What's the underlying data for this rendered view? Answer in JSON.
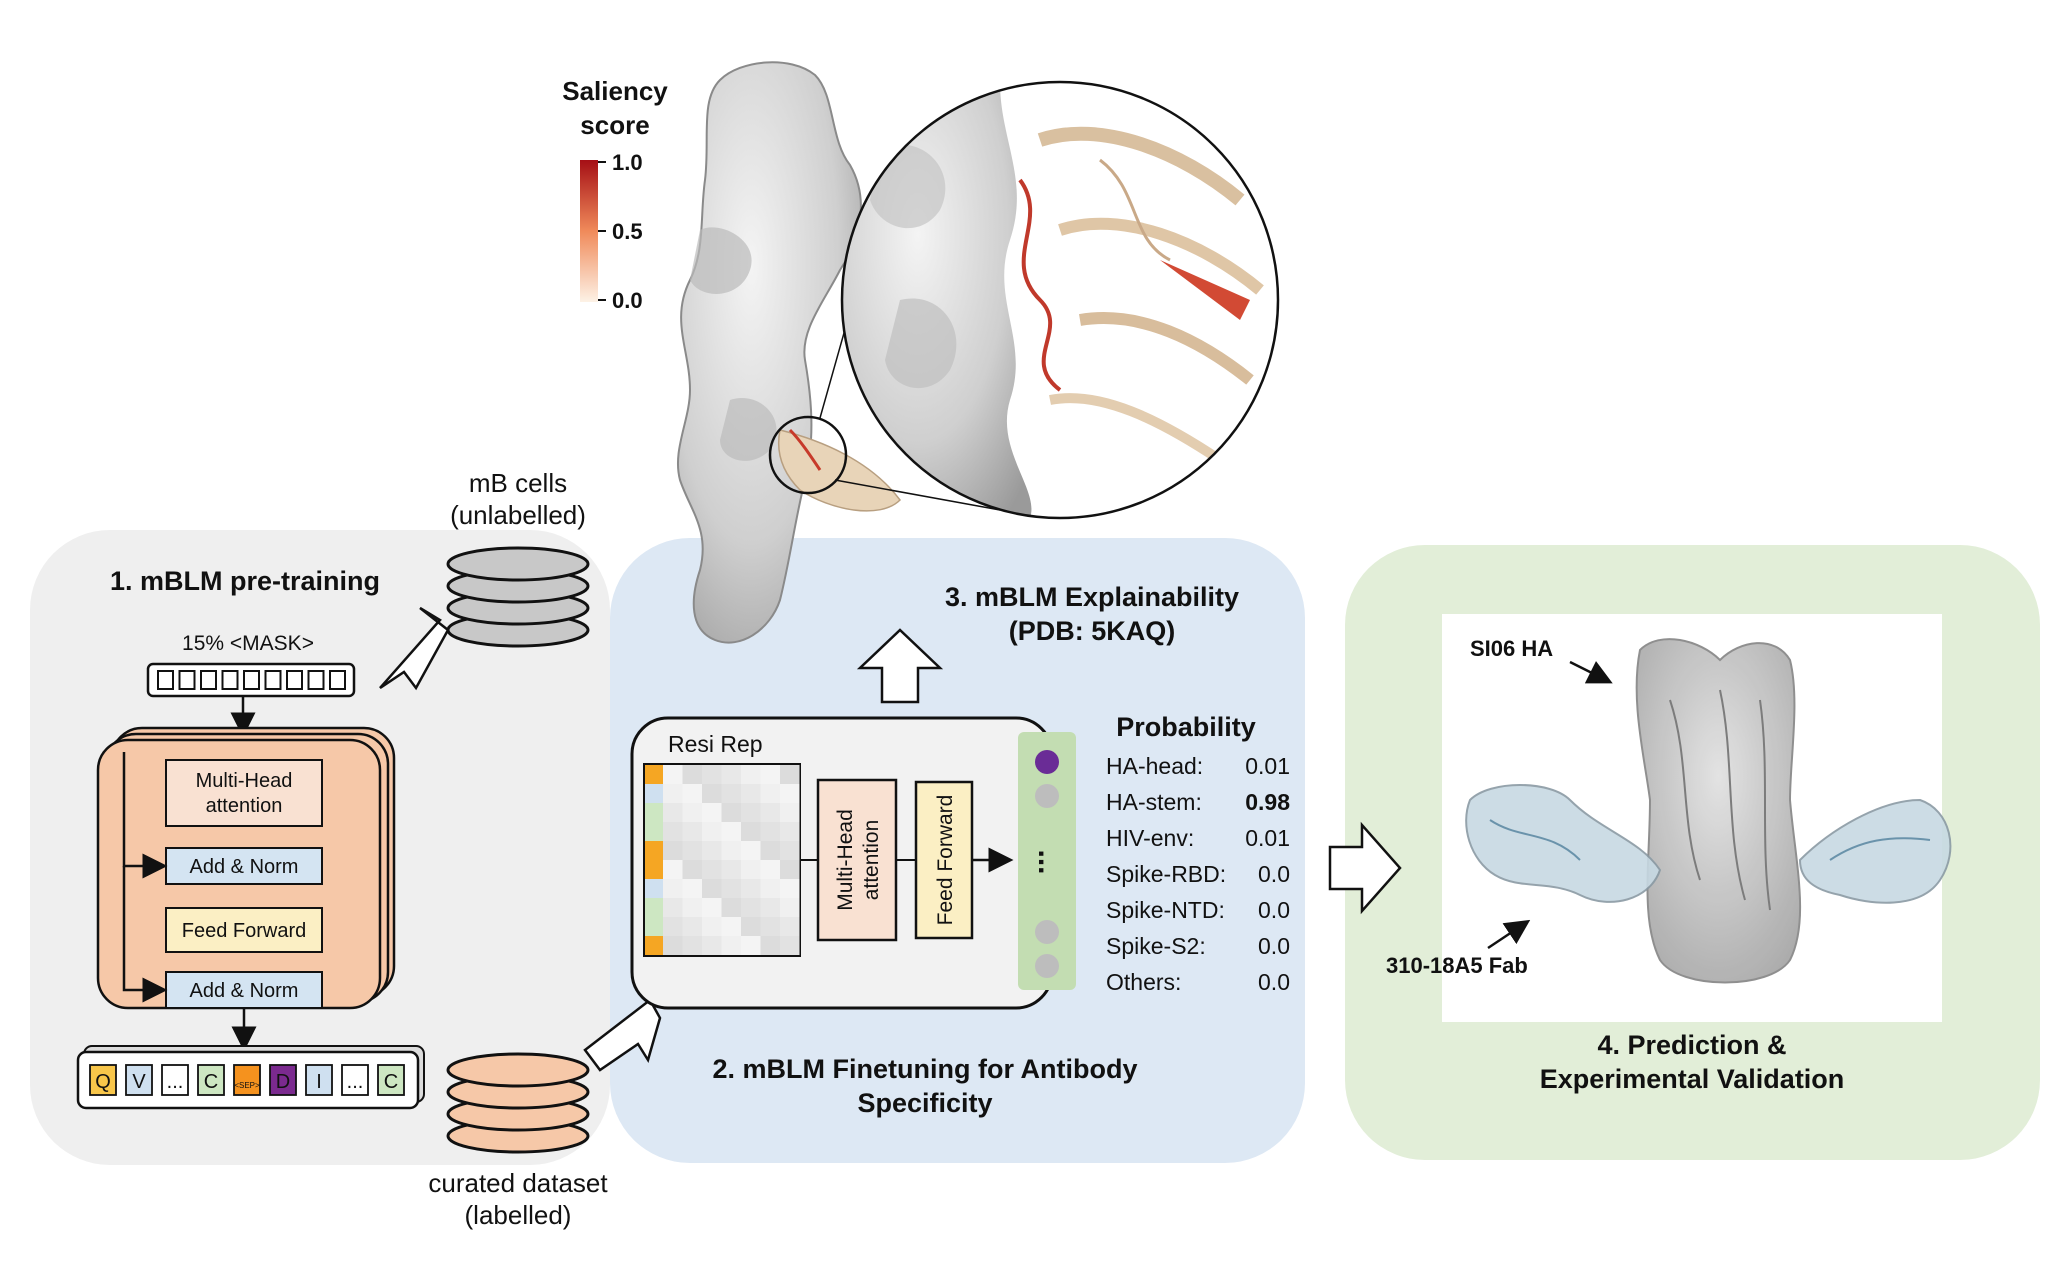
{
  "panel1": {
    "title": "1. mBLM pre-training",
    "mask_label": "15%  <MASK>",
    "blocks": {
      "mha": [
        "Multi-Head",
        "attention"
      ],
      "add_norm_1": "Add & Norm",
      "ff": "Feed Forward",
      "add_norm_2": "Add & Norm"
    },
    "tokens": [
      "Q",
      "V",
      "...",
      "C",
      "<SEP>",
      "D",
      "I",
      "...",
      "C"
    ]
  },
  "db_top": {
    "line1": "mB cells",
    "line2": "(unlabelled)"
  },
  "db_bottom": {
    "line1": "curated dataset",
    "line2": "(labelled)"
  },
  "panel2": {
    "title_line1": "2. mBLM Finetuning for Antibody",
    "title_line2": "Specificity",
    "resi_rep": "Resi Rep",
    "mha": [
      "Multi-Head",
      "attention"
    ],
    "ff": "Feed Forward",
    "ellipsis": "...",
    "prob_title": "Probability",
    "probs": [
      {
        "label": "HA-head:",
        "value": "0.01"
      },
      {
        "label": "HA-stem:",
        "value": "0.98"
      },
      {
        "label": "HIV-env:",
        "value": "0.01"
      },
      {
        "label": "Spike-RBD:",
        "value": "0.0"
      },
      {
        "label": "Spike-NTD:",
        "value": "0.0"
      },
      {
        "label": "Spike-S2:",
        "value": "0.0"
      },
      {
        "label": "Others:",
        "value": "0.0"
      }
    ]
  },
  "panel3": {
    "title_line1": "3. mBLM Explainability",
    "title_line2": "(PDB: 5KAQ)"
  },
  "saliency": {
    "title_line1": "Saliency",
    "title_line2": "score",
    "ticks": [
      "1.0",
      "0.5",
      "0.0"
    ]
  },
  "panel4": {
    "title_line1": "4. Prediction &",
    "title_line2": "Experimental Validation",
    "label_ha": "SI06 HA",
    "label_fab": "310-18A5 Fab"
  },
  "colors": {
    "panel1_bg": "#efefef",
    "panel2_bg": "#dde8f4",
    "panel4_bg": "#e2eed8",
    "transformer": "#f6c8a8",
    "add_norm": "#d4e4f2",
    "feed_forward": "#fbefc4",
    "mha": "#f9e1d2"
  }
}
